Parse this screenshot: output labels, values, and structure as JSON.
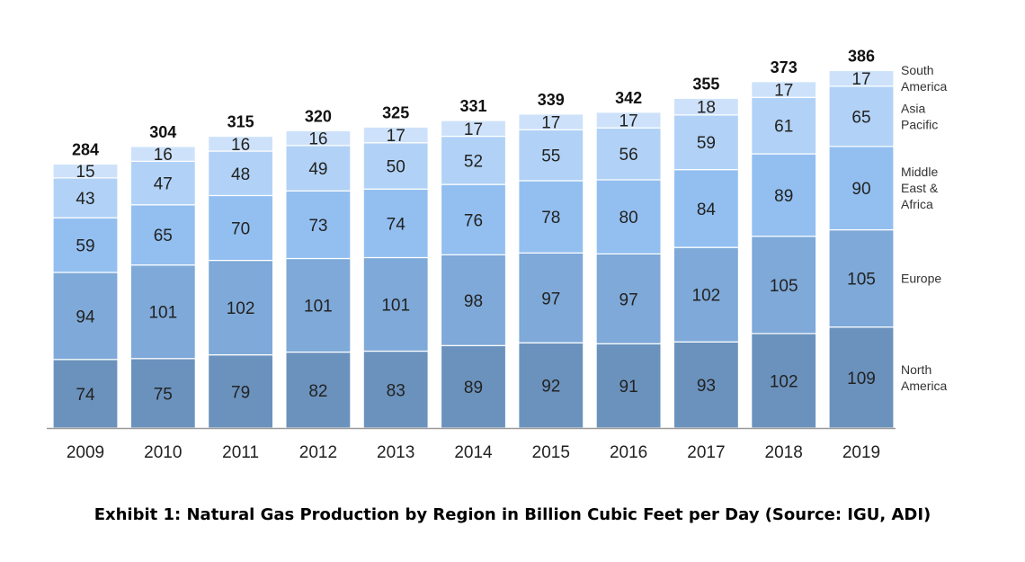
{
  "caption": "Exhibit 1: Natural Gas Production by Region in Billion Cubic Feet per Day (Source: IGU, ADI)",
  "chart_data": {
    "type": "bar",
    "stacked": true,
    "categories": [
      "2009",
      "2010",
      "2011",
      "2012",
      "2013",
      "2014",
      "2015",
      "2016",
      "2017",
      "2018",
      "2019"
    ],
    "totals": [
      284,
      304,
      315,
      320,
      325,
      331,
      339,
      342,
      355,
      373,
      386
    ],
    "series": [
      {
        "name": "North America",
        "name_lines": [
          "North",
          "America"
        ],
        "color": "#6b92bd",
        "values": [
          74,
          75,
          79,
          82,
          83,
          89,
          92,
          91,
          93,
          102,
          109
        ]
      },
      {
        "name": "Europe",
        "name_lines": [
          "Europe"
        ],
        "color": "#7ea9d8",
        "values": [
          94,
          101,
          102,
          101,
          101,
          98,
          97,
          97,
          102,
          105,
          105
        ]
      },
      {
        "name": "Middle East & Africa",
        "name_lines": [
          "Middle",
          "East &",
          "Africa"
        ],
        "color": "#93bff0",
        "values": [
          59,
          65,
          70,
          73,
          74,
          76,
          78,
          80,
          84,
          89,
          90
        ]
      },
      {
        "name": "Asia Pacific",
        "name_lines": [
          "Asia",
          "Pacific"
        ],
        "color": "#b1d2f6",
        "values": [
          43,
          47,
          48,
          49,
          50,
          52,
          55,
          56,
          59,
          61,
          65
        ]
      },
      {
        "name": "South America",
        "name_lines": [
          "South",
          "America"
        ],
        "color": "#cde2fa",
        "values": [
          15,
          16,
          16,
          16,
          17,
          17,
          17,
          17,
          18,
          17,
          17
        ]
      }
    ],
    "ylim": [
      0,
      400
    ],
    "grid": false,
    "legend": "right, aligned with segments"
  }
}
